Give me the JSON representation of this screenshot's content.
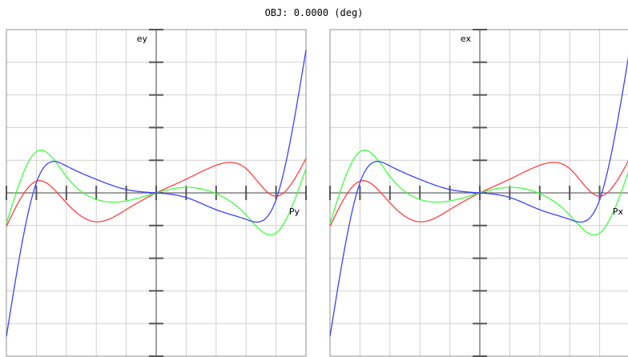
{
  "title": "OBJ: 0.0000 (deg)",
  "chart_data": [
    {
      "type": "line",
      "title": "",
      "xlabel": "Py",
      "ylabel": "ey",
      "xlim": [
        -1,
        1
      ],
      "ylim": [
        -1,
        1
      ],
      "grid": true,
      "x": [
        -1.0,
        -0.8,
        -0.6,
        -0.4,
        -0.2,
        0.0,
        0.2,
        0.4,
        0.6,
        0.8,
        1.0
      ],
      "series": [
        {
          "color": "#ff4040",
          "values": [
            -0.205,
            0.072,
            -0.061,
            -0.177,
            -0.102,
            0.0,
            0.084,
            0.169,
            0.149,
            -0.02,
            0.211
          ]
        },
        {
          "color": "#40ff40",
          "values": [
            -0.188,
            0.253,
            0.101,
            -0.04,
            -0.049,
            0.0,
            0.034,
            -0.004,
            -0.135,
            -0.246,
            0.15
          ]
        },
        {
          "color": "#4040ff",
          "values": [
            -0.879,
            0.063,
            0.165,
            0.083,
            0.021,
            0.0,
            -0.028,
            -0.103,
            -0.162,
            -0.042,
            0.876
          ]
        }
      ]
    },
    {
      "type": "line",
      "title": "",
      "xlabel": "Px",
      "ylabel": "ex",
      "xlim": [
        -1,
        1
      ],
      "ylim": [
        -1,
        1
      ],
      "grid": true,
      "x": [
        -1.0,
        -0.8,
        -0.6,
        -0.4,
        -0.2,
        0.0,
        0.2,
        0.4,
        0.6,
        0.8,
        1.0
      ],
      "series": [
        {
          "color": "#ff4040",
          "values": [
            -0.205,
            0.072,
            -0.061,
            -0.177,
            -0.102,
            0.0,
            0.084,
            0.169,
            0.149,
            -0.02,
            0.211
          ]
        },
        {
          "color": "#40ff40",
          "values": [
            -0.188,
            0.253,
            0.101,
            -0.04,
            -0.049,
            0.0,
            0.034,
            -0.004,
            -0.135,
            -0.246,
            0.15
          ]
        },
        {
          "color": "#4040ff",
          "values": [
            -0.879,
            0.063,
            0.165,
            0.083,
            0.021,
            0.0,
            -0.028,
            -0.103,
            -0.162,
            -0.042,
            0.876
          ]
        }
      ]
    }
  ]
}
